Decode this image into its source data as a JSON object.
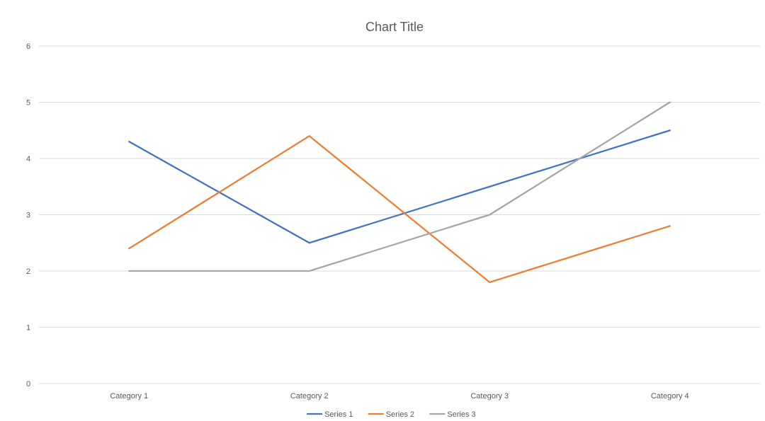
{
  "chart_data": {
    "type": "line",
    "title": "Chart Title",
    "categories": [
      "Category 1",
      "Category 2",
      "Category 3",
      "Category 4"
    ],
    "series": [
      {
        "name": "Series 1",
        "values": [
          4.3,
          2.5,
          3.5,
          4.5
        ],
        "color": "#4472c4"
      },
      {
        "name": "Series 2",
        "values": [
          2.4,
          4.4,
          1.8,
          2.8
        ],
        "color": "#ed7d31"
      },
      {
        "name": "Series 3",
        "values": [
          2,
          2,
          3,
          5
        ],
        "color": "#a5a5a5"
      }
    ],
    "yticks": [
      "0",
      "1",
      "2",
      "3",
      "4",
      "5",
      "6"
    ],
    "ylim": [
      0,
      6
    ],
    "xlabel": "",
    "ylabel": "",
    "grid": true,
    "legend_position": "bottom",
    "colors": {
      "text": "#595959",
      "gridline": "#d9d9d9"
    }
  }
}
